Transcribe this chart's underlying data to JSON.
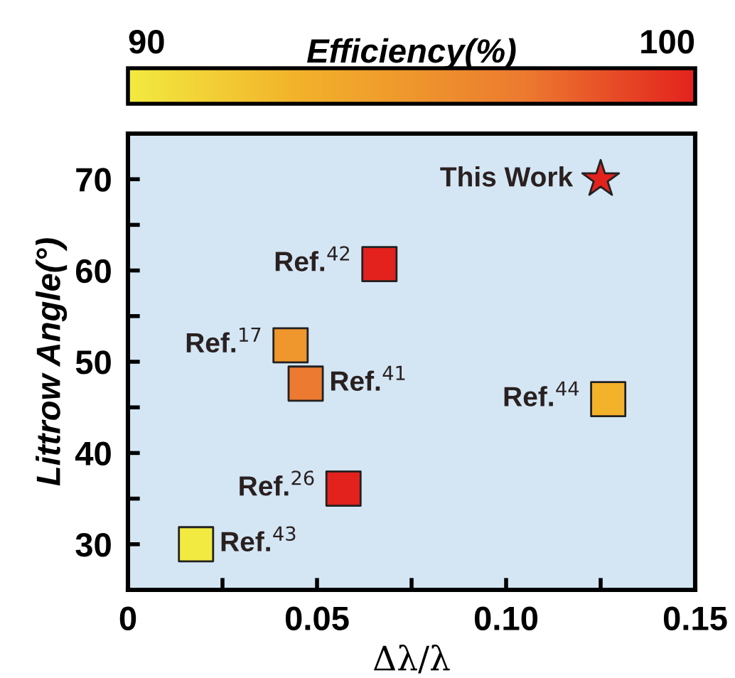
{
  "chart_data": {
    "type": "scatter",
    "xlabel": "Δλ/λ",
    "ylabel": "Littrow Angle(°)",
    "clabel": "Efficiency(%)",
    "xlim": [
      0,
      0.15
    ],
    "ylim": [
      25,
      75
    ],
    "xticks": [
      0,
      {
        "value": 0.025,
        "label": null
      },
      {
        "value": 0.05,
        "label": "0.05"
      },
      {
        "value": 0.075,
        "label": null
      },
      {
        "value": 0.1,
        "label": "0.10"
      },
      {
        "value": 0.125,
        "label": null
      },
      {
        "value": 0.15,
        "label": "0.15"
      }
    ],
    "yticks": [
      {
        "value": 25,
        "label": null
      },
      30,
      {
        "value": 35,
        "label": null
      },
      40,
      {
        "value": 45,
        "label": null
      },
      50,
      {
        "value": 55,
        "label": null
      },
      60,
      {
        "value": 65,
        "label": null
      },
      70,
      {
        "value": 75,
        "label": null
      }
    ],
    "clim": [
      90,
      100
    ],
    "cticks": [
      90,
      100
    ],
    "grid": false,
    "series": [
      {
        "marker": "star",
        "x": [
          0.125
        ],
        "values": [
          70
        ],
        "cvalues": [
          100
        ],
        "colors": [
          "#e3221e"
        ]
      },
      {
        "marker": "square",
        "x": [
          0.0665,
          0.043,
          0.047,
          0.127,
          0.057,
          0.018
        ],
        "values": [
          60.7,
          51.8,
          47.6,
          45.9,
          36.1,
          30
        ],
        "cvalues": [
          100,
          95,
          97,
          93,
          100,
          90
        ],
        "colors": [
          "#e3221e",
          "#ef962d",
          "#ec7a30",
          "#f2b22a",
          "#e3221e",
          "#f2ea40"
        ]
      }
    ],
    "annotations": [
      {
        "text": "This Work",
        "x": 0.125,
        "y": 70
      },
      {
        "text": "Ref.$^{42}$",
        "x": 0.0665,
        "y": 60.7
      },
      {
        "text": "Ref.$^{17}$",
        "x": 0.043,
        "y": 51.8
      },
      {
        "text": "Ref.$^{41}$",
        "x": 0.047,
        "y": 47.6
      },
      {
        "text": "Ref.$^{44}$",
        "x": 0.127,
        "y": 45.9
      },
      {
        "text": "Ref.$^{26}$",
        "x": 0.057,
        "y": 36.1
      },
      {
        "text": "Ref.$^{43}$",
        "x": 0.018,
        "y": 30
      }
    ]
  }
}
